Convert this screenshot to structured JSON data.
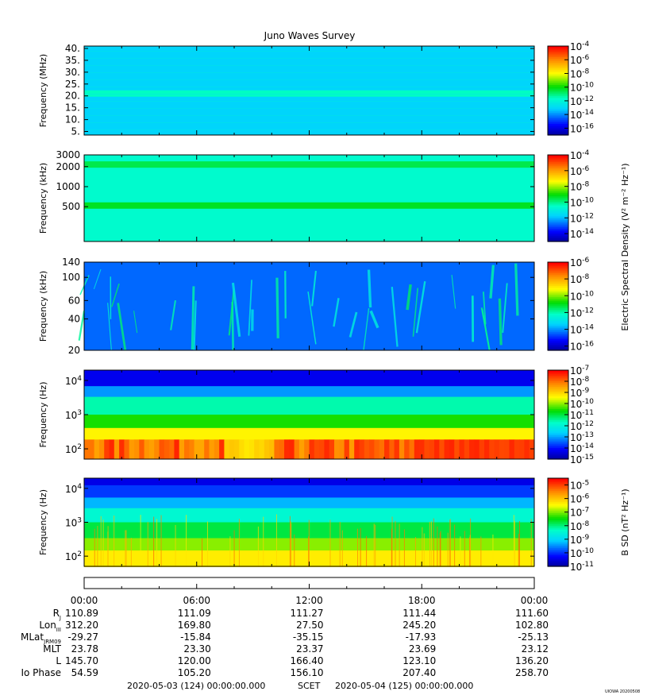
{
  "title": "Juno Waves Survey",
  "footer": {
    "start": "2020-05-03 (124) 00:00:00.000",
    "mid": "SCET",
    "end": "2020-05-04 (125) 00:00:00.000",
    "credit": "UIOWA 20200508"
  },
  "shared_label_esd": "Electric Spectral Density (V² m⁻² Hz⁻¹)",
  "chart_data": [
    {
      "type": "heatmap",
      "panel": 1,
      "ylabel": "Frequency (MHz)",
      "y_ticks": [
        "40.",
        "35.",
        "30.",
        "25.",
        "20.",
        "15.",
        "10.",
        "5."
      ],
      "y_scale": "linear",
      "ylim": [
        3.5,
        41
      ],
      "colorbar": {
        "ticks_exp": [
          "-4",
          "-6",
          "-8",
          "-10",
          "-12",
          "-14",
          "-16"
        ],
        "range_exp": [
          -17,
          -4
        ]
      },
      "background_exp": -13,
      "features": [
        {
          "name": "band",
          "y": 21,
          "level_exp": -11.5
        }
      ]
    },
    {
      "type": "heatmap",
      "panel": 2,
      "ylabel": "Frequency (kHz)",
      "y_ticks": [
        "3000",
        "2000",
        "1000",
        "500"
      ],
      "y_scale": "log",
      "ylim": [
        150,
        3000
      ],
      "colorbar": {
        "ticks_exp": [
          "-4",
          "-6",
          "-8",
          "-10",
          "-12",
          "-14"
        ],
        "range_exp": [
          -15,
          -4
        ]
      },
      "background_exp": -10.5,
      "features": [
        {
          "name": "band",
          "y": 2150,
          "level_exp": -9.5
        },
        {
          "name": "band",
          "y": 520,
          "level_exp": -9.2
        }
      ]
    },
    {
      "type": "heatmap",
      "panel": 3,
      "ylabel": "Frequency (kHz)",
      "y_ticks": [
        "140",
        "100",
        "60",
        "40",
        "20"
      ],
      "y_scale": "log",
      "ylim": [
        20,
        140
      ],
      "colorbar": {
        "ticks_exp": [
          "-6",
          "-8",
          "-10",
          "-12",
          "-14",
          "-16"
        ],
        "range_exp": [
          -16.5,
          -6
        ]
      },
      "background_exp": -14.3
    },
    {
      "type": "heatmap",
      "panel": 4,
      "ylabel": "Frequency (Hz)",
      "y_ticks": [
        "10^4",
        "10^3",
        "10^2"
      ],
      "y_scale": "log",
      "ylim": [
        50,
        20000
      ],
      "colorbar": {
        "ticks_exp": [
          "-7",
          "-8",
          "-9",
          "-10",
          "-11",
          "-12",
          "-13",
          "-14",
          "-15"
        ],
        "range_exp": [
          -15,
          -7
        ]
      }
    },
    {
      "type": "heatmap",
      "panel": 5,
      "ylabel": "Frequency (Hz)",
      "y_ticks": [
        "10^4",
        "10^3",
        "10^2"
      ],
      "y_scale": "log",
      "ylim": [
        50,
        20000
      ],
      "colorbar": {
        "label": "B SD (nT² Hz⁻¹)",
        "ticks_exp": [
          "-5",
          "-6",
          "-7",
          "-8",
          "-9",
          "-10",
          "-11"
        ],
        "range_exp": [
          -11,
          -4.5
        ]
      }
    }
  ],
  "ephemeris": {
    "times": [
      "00:00",
      "06:00",
      "12:00",
      "18:00",
      "00:00"
    ],
    "rows": [
      {
        "label": "R",
        "sub": "J",
        "values": [
          "110.89",
          "111.09",
          "111.27",
          "111.44",
          "111.60"
        ]
      },
      {
        "label": "Lon",
        "sub": "III",
        "values": [
          "312.20",
          "169.80",
          "27.50",
          "245.20",
          "102.80"
        ]
      },
      {
        "label": "MLat",
        "sub": "JRM09",
        "values": [
          "-29.27",
          "-15.84",
          "-35.15",
          "-17.93",
          "-25.13"
        ]
      },
      {
        "label": "MLT",
        "sub": "",
        "values": [
          "23.78",
          "23.30",
          "23.37",
          "23.69",
          "23.12"
        ]
      },
      {
        "label": "L",
        "sub": "",
        "values": [
          "145.70",
          "120.00",
          "166.40",
          "123.10",
          "136.20"
        ]
      },
      {
        "label": "Io Phase",
        "sub": "",
        "values": [
          "54.59",
          "105.20",
          "156.10",
          "207.40",
          "258.70"
        ]
      }
    ]
  }
}
